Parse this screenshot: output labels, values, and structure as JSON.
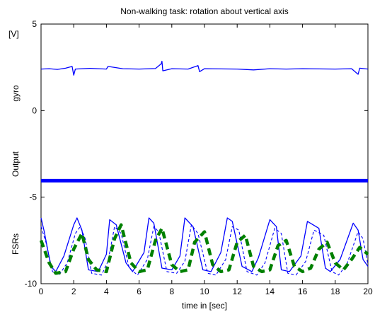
{
  "chart_data": {
    "type": "line",
    "title": "Non-walking task: rotation about vertical axis",
    "xlabel": "time in [sec]",
    "unit_label": "[V]",
    "row_labels": [
      "gyro",
      "Output",
      "FSRs"
    ],
    "xlim": [
      0,
      20
    ],
    "ylim": [
      -10,
      5
    ],
    "x_ticks": [
      0,
      2,
      4,
      6,
      8,
      10,
      12,
      14,
      16,
      18,
      20
    ],
    "y_ticks": [
      -10,
      -5,
      0,
      5
    ],
    "grid": false,
    "colors": {
      "gyro": "#0000ff",
      "output": "#0000ff",
      "fsr_solid": "#0000ff",
      "fsr_dashed": "#0000ff",
      "fsr_thick": "#008000"
    },
    "series": [
      {
        "key": "gyro",
        "style": "solid",
        "x": [
          0,
          0.5,
          1.0,
          1.5,
          1.9,
          2.0,
          2.1,
          2.5,
          3.0,
          4.0,
          4.1,
          5.0,
          6.0,
          7.0,
          7.35,
          7.4,
          7.45,
          8.0,
          9.0,
          9.6,
          9.7,
          10.0,
          11.0,
          12.0,
          13.0,
          14.0,
          15.0,
          16.0,
          17.0,
          18.0,
          19.0,
          19.4,
          19.5,
          20.0
        ],
        "y": [
          2.4,
          2.42,
          2.38,
          2.45,
          2.55,
          2.05,
          2.4,
          2.42,
          2.44,
          2.4,
          2.55,
          2.42,
          2.4,
          2.43,
          2.7,
          2.85,
          2.3,
          2.42,
          2.4,
          2.6,
          2.25,
          2.42,
          2.41,
          2.4,
          2.35,
          2.42,
          2.4,
          2.42,
          2.41,
          2.4,
          2.42,
          2.1,
          2.45,
          2.4
        ]
      },
      {
        "key": "output",
        "style": "thick-dotted",
        "x": [
          0,
          20
        ],
        "y": [
          -4.05,
          -4.05
        ]
      },
      {
        "key": "fsr_solid",
        "style": "solid",
        "x": [
          0,
          0.2,
          0.6,
          0.9,
          1.4,
          2.0,
          2.2,
          2.5,
          2.9,
          3.5,
          4.0,
          4.2,
          4.6,
          5.2,
          5.6,
          6.3,
          6.6,
          6.9,
          7.4,
          8.0,
          8.5,
          8.8,
          9.3,
          9.9,
          10.4,
          11.0,
          11.4,
          11.7,
          12.3,
          12.9,
          13.3,
          14.0,
          14.4,
          14.7,
          15.2,
          15.9,
          16.3,
          17.0,
          17.4,
          17.7,
          18.3,
          19.1,
          19.4,
          19.7,
          20.0
        ],
        "y": [
          -6.2,
          -7.0,
          -9.0,
          -9.3,
          -8.4,
          -6.6,
          -6.2,
          -6.9,
          -9.2,
          -9.3,
          -8.3,
          -6.3,
          -6.6,
          -8.8,
          -9.3,
          -8.2,
          -6.2,
          -6.5,
          -9.1,
          -9.2,
          -8.4,
          -6.2,
          -6.7,
          -9.2,
          -9.3,
          -8.2,
          -6.2,
          -6.4,
          -9.0,
          -9.3,
          -8.5,
          -6.3,
          -6.7,
          -9.2,
          -9.3,
          -8.4,
          -6.4,
          -6.8,
          -9.1,
          -9.3,
          -8.6,
          -6.5,
          -6.9,
          -8.6,
          -9.0
        ]
      },
      {
        "key": "fsr_dashed",
        "style": "dashed",
        "x": [
          0,
          0.3,
          0.7,
          1.1,
          1.6,
          2.1,
          2.4,
          2.7,
          3.1,
          3.7,
          4.1,
          4.5,
          4.9,
          5.4,
          5.9,
          6.5,
          6.9,
          7.2,
          7.7,
          8.3,
          8.8,
          9.2,
          9.6,
          10.2,
          10.7,
          11.3,
          11.7,
          12.1,
          12.6,
          13.2,
          13.7,
          14.3,
          14.7,
          15.1,
          15.6,
          16.2,
          16.7,
          17.3,
          17.8,
          18.2,
          18.7,
          19.4,
          19.7,
          20.0
        ],
        "y": [
          -6.7,
          -7.6,
          -9.3,
          -9.5,
          -8.8,
          -7.1,
          -6.7,
          -7.4,
          -9.4,
          -9.5,
          -8.7,
          -6.7,
          -7.1,
          -9.1,
          -9.5,
          -8.6,
          -6.7,
          -7.0,
          -9.3,
          -9.4,
          -8.7,
          -6.6,
          -7.1,
          -9.4,
          -9.5,
          -8.6,
          -6.7,
          -6.9,
          -9.3,
          -9.5,
          -8.8,
          -6.8,
          -7.1,
          -9.4,
          -9.5,
          -8.7,
          -6.9,
          -7.2,
          -9.3,
          -9.5,
          -8.9,
          -7.0,
          -7.4,
          -8.9
        ]
      },
      {
        "key": "fsr_thick",
        "style": "thick-dashed",
        "x": [
          0,
          0.5,
          0.9,
          1.5,
          2.0,
          2.5,
          2.9,
          3.4,
          4.0,
          4.5,
          4.9,
          5.5,
          6.0,
          6.5,
          7.0,
          7.4,
          8.0,
          8.5,
          9.0,
          9.4,
          10.0,
          10.5,
          11.0,
          11.5,
          12.0,
          12.5,
          13.0,
          13.5,
          14.0,
          14.5,
          15.0,
          15.5,
          16.0,
          16.5,
          17.0,
          17.5,
          18.0,
          18.5,
          19.0,
          19.5,
          20.0
        ],
        "y": [
          -7.5,
          -8.8,
          -9.4,
          -9.3,
          -8.0,
          -7.1,
          -8.6,
          -9.2,
          -9.3,
          -7.4,
          -6.6,
          -8.8,
          -9.3,
          -9.2,
          -7.5,
          -6.8,
          -8.9,
          -9.3,
          -9.2,
          -7.6,
          -7.0,
          -8.9,
          -9.3,
          -9.2,
          -7.6,
          -7.2,
          -9.0,
          -9.3,
          -9.2,
          -7.8,
          -7.5,
          -9.0,
          -9.3,
          -9.1,
          -8.0,
          -7.6,
          -8.8,
          -9.2,
          -8.6,
          -7.9,
          -8.3
        ]
      }
    ]
  }
}
